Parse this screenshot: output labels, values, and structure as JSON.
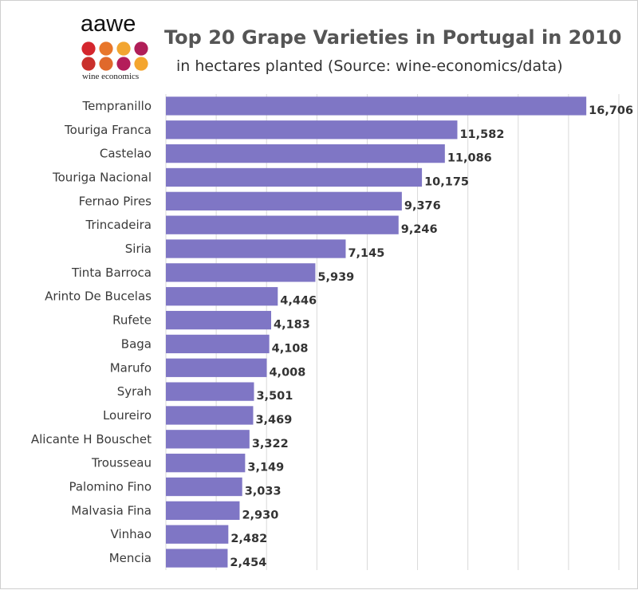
{
  "logo": {
    "name": "aawe",
    "tagline": "wine economics",
    "dot_colors": [
      "#d4262d",
      "#e8762a",
      "#f2a531",
      "#b01e58",
      "#c9302c",
      "#e0692b",
      "#b41d5a",
      "#f4a52e",
      "#f7d21c",
      "#ed1f26",
      "#f1e51a",
      "#8c1a3f"
    ]
  },
  "colors": {
    "bar": "#7f76c5",
    "grid": "#d9d9d9",
    "title": "#555555"
  },
  "chart_data": {
    "type": "bar",
    "orientation": "horizontal",
    "title": "Top 20 Grape Varieties in Portugal in 2010",
    "subtitle": "in hectares planted (Source: wine-economics/data)",
    "xlabel": "",
    "ylabel": "",
    "xlim": [
      0,
      18000
    ],
    "grid": true,
    "categories": [
      "Tempranillo",
      "Touriga Franca",
      "Castelao",
      "Touriga Nacional",
      "Fernao Pires",
      "Trincadeira",
      "Siria",
      "Tinta Barroca",
      "Arinto De Bucelas",
      "Rufete",
      "Baga",
      "Marufo",
      "Syrah",
      "Loureiro",
      "Alicante H Bouschet",
      "Trousseau",
      "Palomino Fino",
      "Malvasia Fina",
      "Vinhao",
      "Mencia"
    ],
    "values": [
      16706,
      11582,
      11086,
      10175,
      9376,
      9246,
      7145,
      5939,
      4446,
      4183,
      4108,
      4008,
      3501,
      3469,
      3322,
      3149,
      3033,
      2930,
      2482,
      2454
    ],
    "value_labels": [
      "16,706",
      "11,582",
      "11,086",
      "10,175",
      "9,376",
      "9,246",
      "7,145",
      "5,939",
      "4,446",
      "4,183",
      "4,108",
      "4,008",
      "3,501",
      "3,469",
      "3,322",
      "3,149",
      "3,033",
      "2,930",
      "2,482",
      "2,454"
    ]
  }
}
